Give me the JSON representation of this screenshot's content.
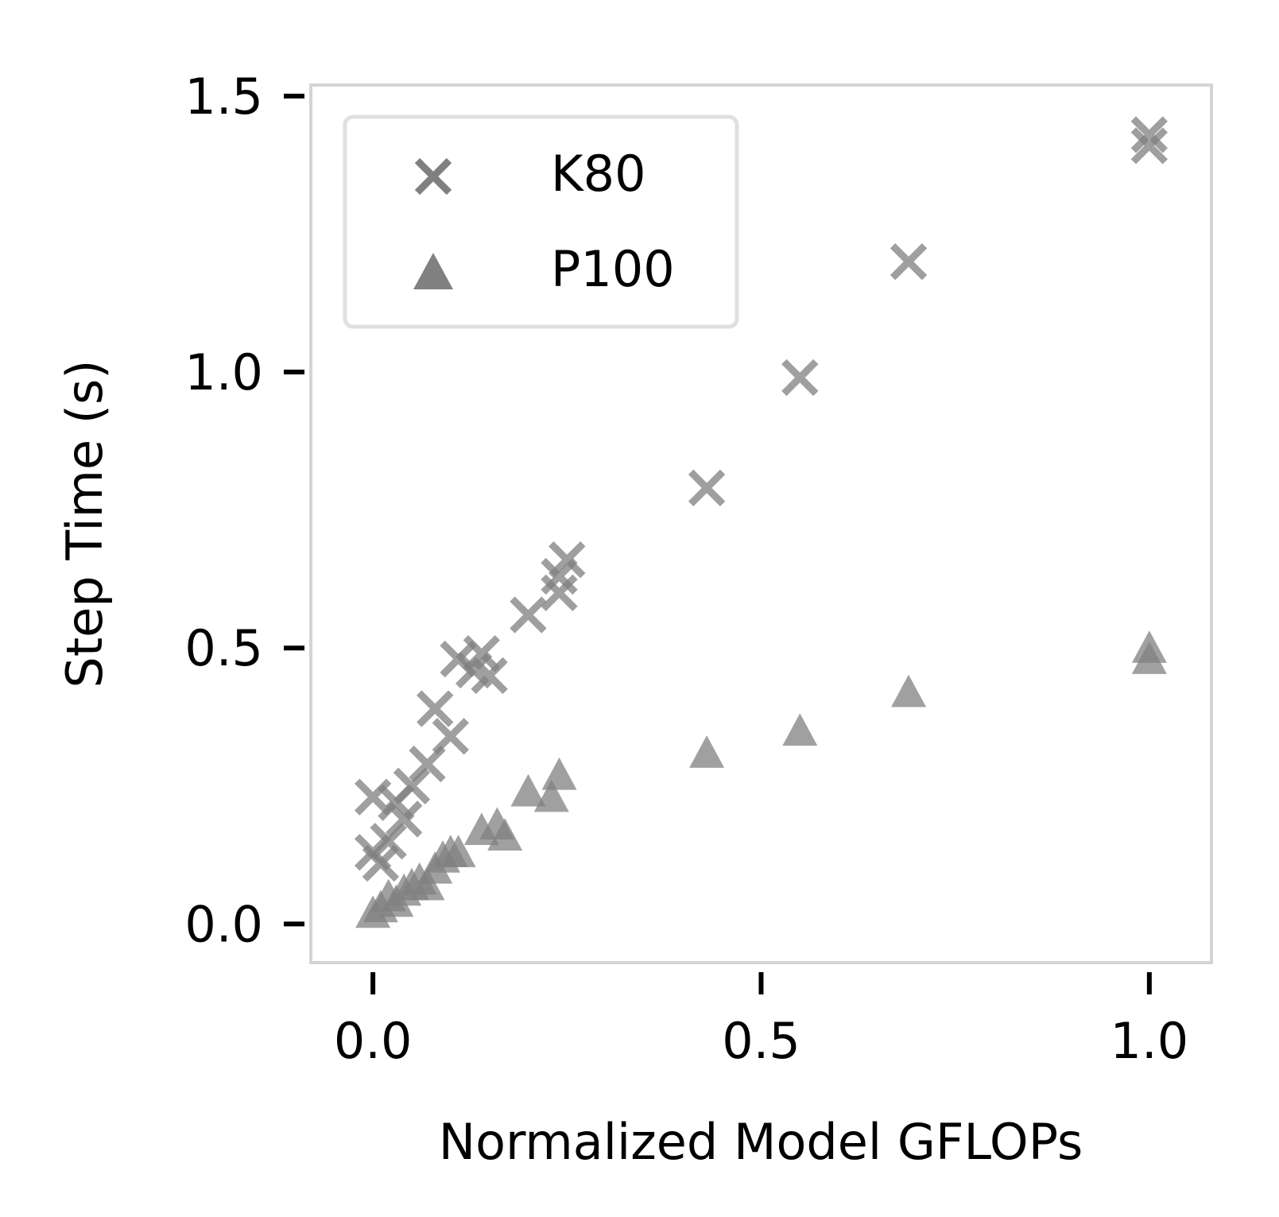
{
  "chart_data": {
    "type": "scatter",
    "title": "",
    "xlabel": "Normalized Model GFLOPs",
    "ylabel": "Step Time (s)",
    "xlim": [
      -0.08,
      1.08
    ],
    "ylim": [
      -0.07,
      1.52
    ],
    "xticks": [
      0.0,
      0.5,
      1.0
    ],
    "xtick_labels": [
      "0.0",
      "0.5",
      "1.0"
    ],
    "yticks": [
      0.0,
      0.5,
      1.0,
      1.5
    ],
    "ytick_labels": [
      "0.0",
      "0.5",
      "1.0",
      "1.5"
    ],
    "grid": false,
    "legend_position": "top-left",
    "series": [
      {
        "name": "K80",
        "marker": "x",
        "color": "#808080",
        "x": [
          0.0,
          0.0,
          0.01,
          0.02,
          0.03,
          0.04,
          0.05,
          0.07,
          0.08,
          0.1,
          0.11,
          0.13,
          0.14,
          0.15,
          0.2,
          0.24,
          0.24,
          0.25,
          0.43,
          0.55,
          0.69,
          1.0,
          1.0
        ],
        "y": [
          0.23,
          0.13,
          0.11,
          0.15,
          0.22,
          0.19,
          0.25,
          0.29,
          0.39,
          0.34,
          0.48,
          0.46,
          0.49,
          0.45,
          0.56,
          0.6,
          0.63,
          0.66,
          0.79,
          0.99,
          1.2,
          1.41,
          1.43
        ]
      },
      {
        "name": "P100",
        "marker": "^",
        "color": "#808080",
        "x": [
          0.0,
          0.01,
          0.02,
          0.03,
          0.04,
          0.05,
          0.06,
          0.07,
          0.08,
          0.09,
          0.1,
          0.11,
          0.14,
          0.16,
          0.17,
          0.2,
          0.23,
          0.24,
          0.43,
          0.55,
          0.69,
          1.0,
          1.0
        ],
        "y": [
          0.02,
          0.03,
          0.05,
          0.04,
          0.06,
          0.07,
          0.08,
          0.07,
          0.1,
          0.12,
          0.13,
          0.13,
          0.17,
          0.18,
          0.16,
          0.24,
          0.23,
          0.27,
          0.31,
          0.35,
          0.42,
          0.48,
          0.5
        ]
      }
    ]
  }
}
